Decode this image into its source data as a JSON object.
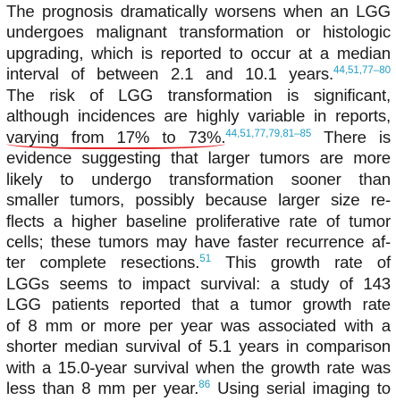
{
  "paragraph": {
    "lines": [
      [
        {
          "text": "The prognosis dramatically worsens when an LGG"
        }
      ],
      [
        {
          "text": "undergoes malignant transformation or histologic"
        }
      ],
      [
        {
          "text": "upgrading, which is reported to occur at a median"
        }
      ],
      [
        {
          "text": "interval of between 2.1 and 10.1 years."
        },
        {
          "sup": "44,51,77–80"
        }
      ],
      [
        {
          "text": "The risk of LGG transformation is significant,"
        }
      ],
      [
        {
          "text": "although incidences are highly variable in reports,"
        }
      ],
      [
        {
          "text": "varying from 17% to 73%.",
          "underline": true
        },
        {
          "sup": "44,51,77,79,81–85"
        },
        {
          "text": " There is"
        }
      ],
      [
        {
          "text": "evidence suggesting that larger tumors are more"
        }
      ],
      [
        {
          "text": "likely to undergo transformation sooner than"
        }
      ],
      [
        {
          "text": "smaller tumors, possibly because larger size re-"
        }
      ],
      [
        {
          "text": "flects a higher baseline proliferative rate of tumor"
        }
      ],
      [
        {
          "text": "cells; these tumors may have faster recurrence af-"
        }
      ],
      [
        {
          "text": "ter complete resections."
        },
        {
          "sup": "51"
        },
        {
          "text": " This growth rate of"
        }
      ],
      [
        {
          "text": "LGGs seems to impact survival: a study of 143"
        }
      ],
      [
        {
          "text": "LGG patients reported that a tumor growth rate"
        }
      ],
      [
        {
          "text": "of 8 mm or more per year was associated with a"
        }
      ],
      [
        {
          "text": "shorter median survival of 5.1 years in comparison"
        }
      ],
      [
        {
          "text": "with a 15.0-year survival when the growth rate was"
        }
      ],
      [
        {
          "text": "less than 8 mm per year."
        },
        {
          "sup": "86"
        },
        {
          "text": " Using serial imaging to"
        }
      ]
    ]
  }
}
